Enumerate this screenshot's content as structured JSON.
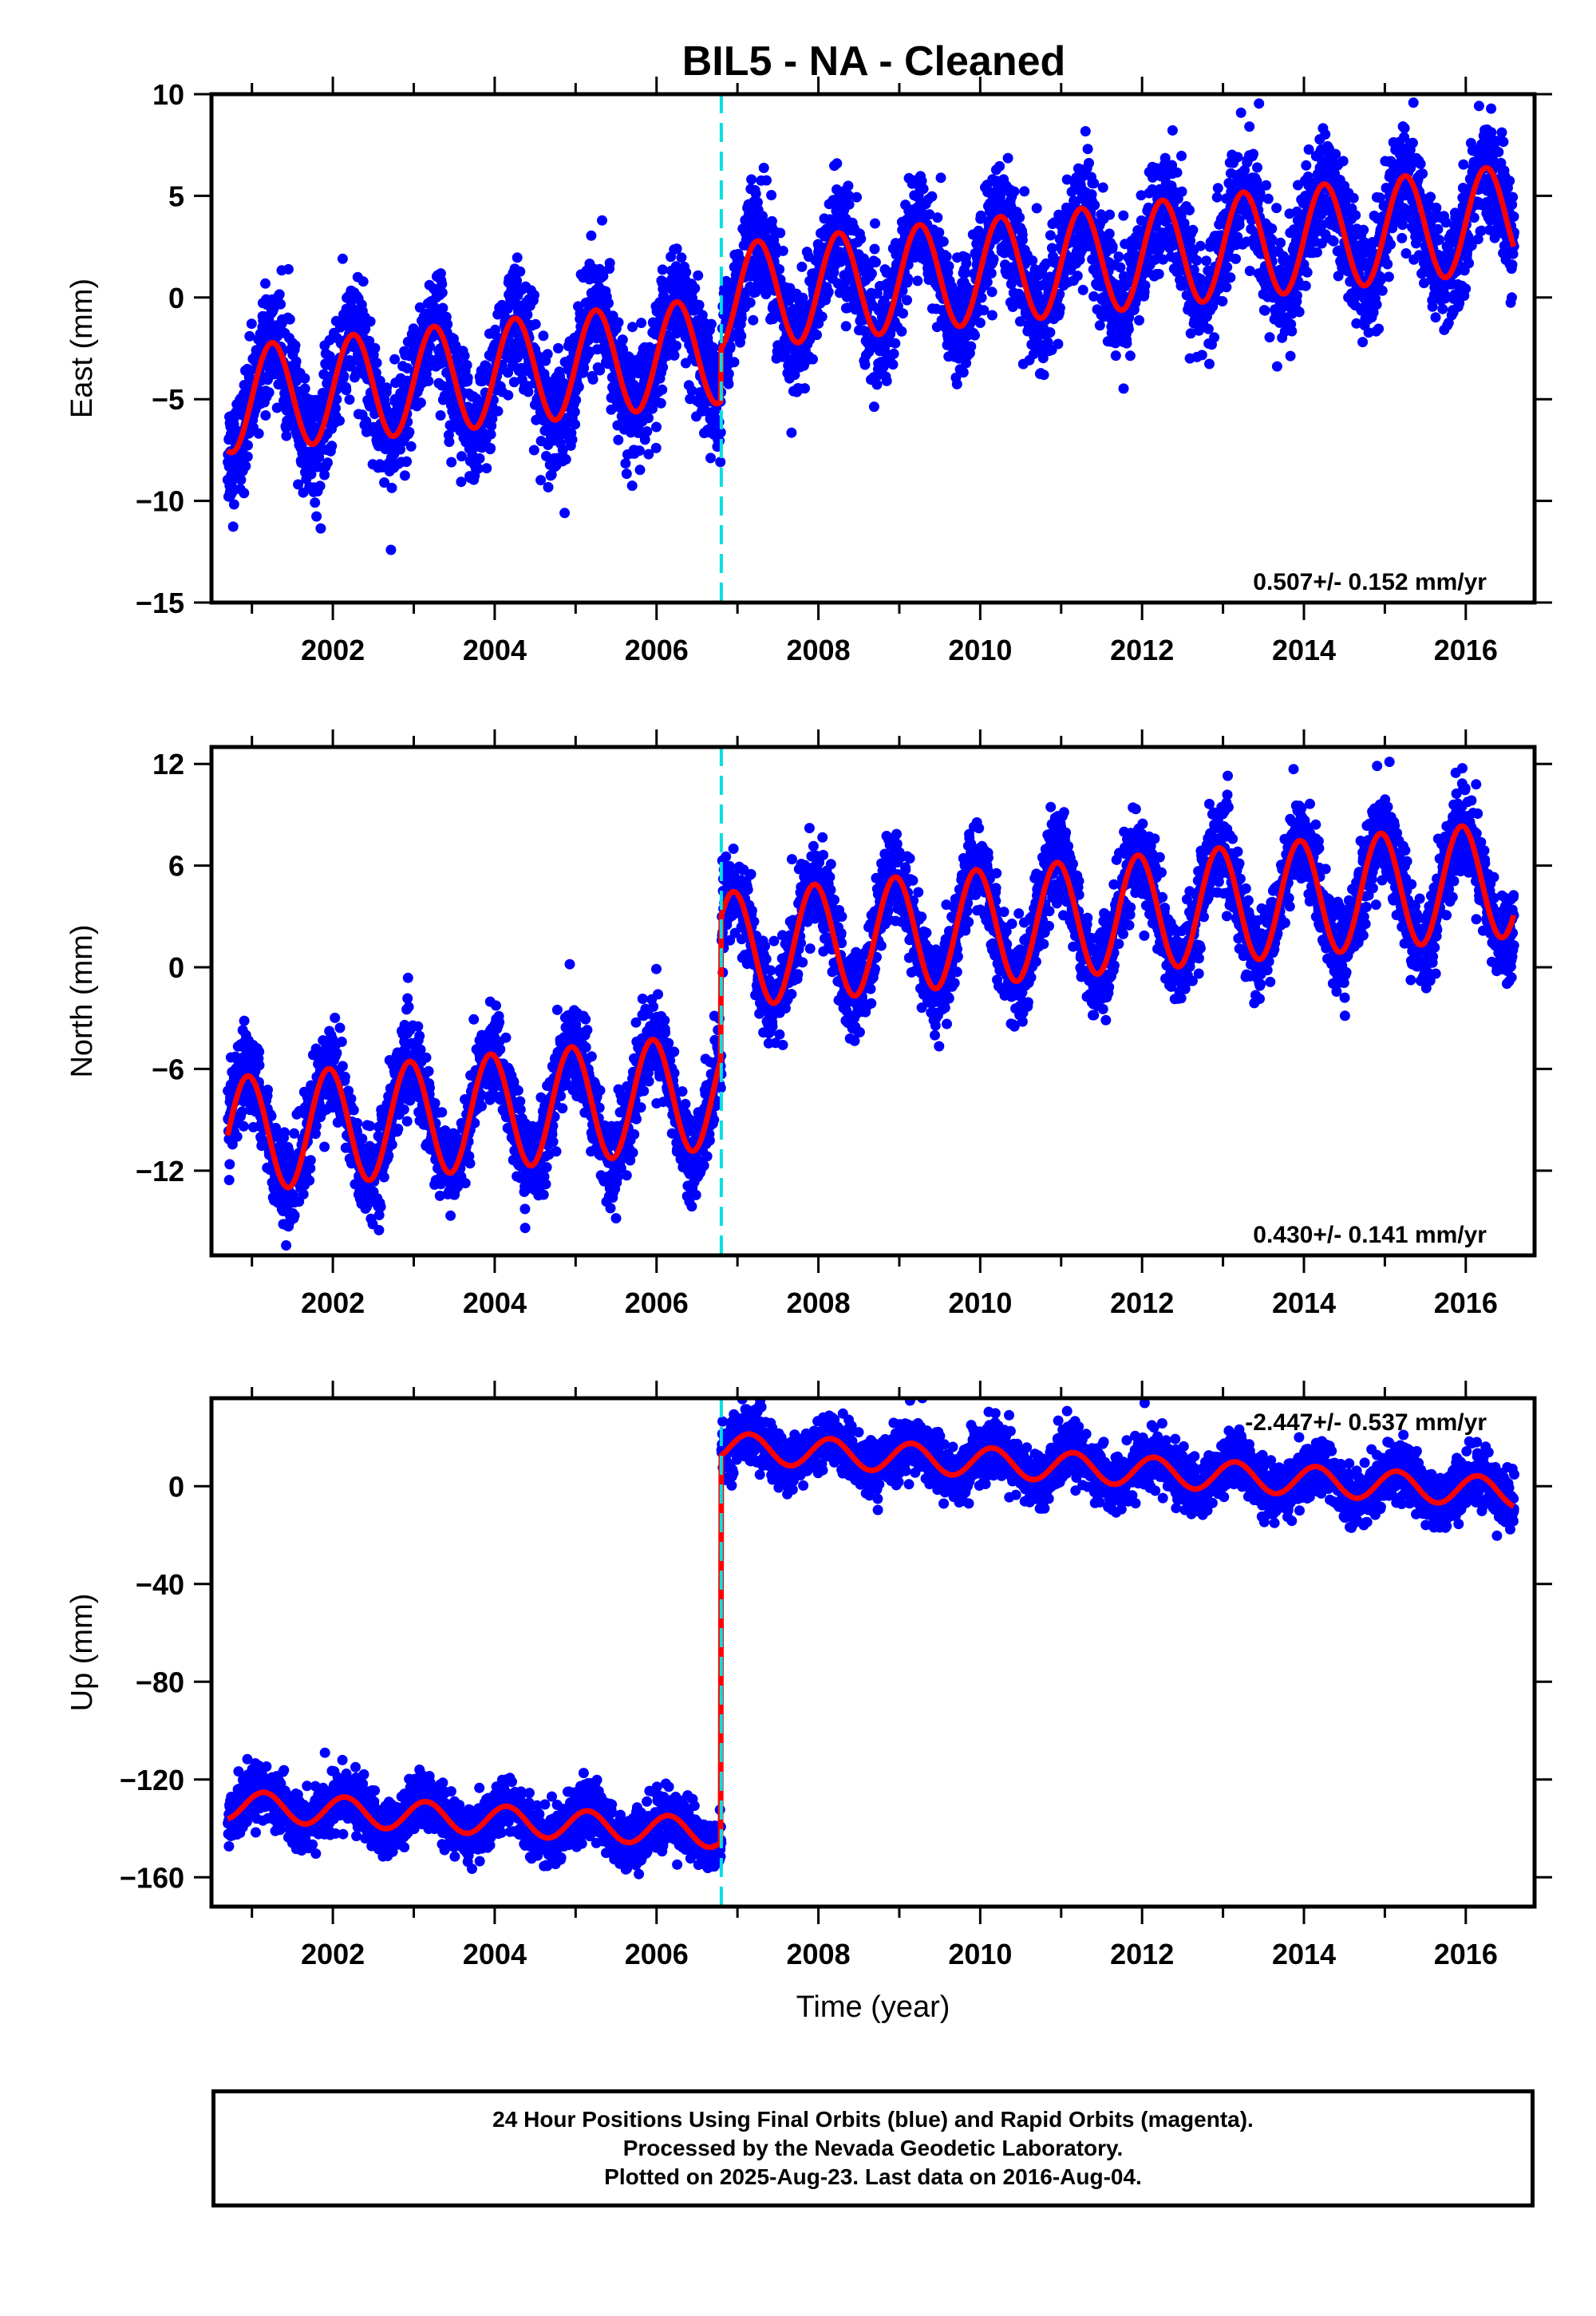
{
  "title": "BIL5  - NA - Cleaned",
  "colors": {
    "final_orbits": "#0000ff",
    "fit": "#ff0000",
    "offset_line": "#00e0e0",
    "frame": "#000000"
  },
  "chart_data": [
    {
      "type": "scatter",
      "ylabel": "East (mm)",
      "xlabel": "",
      "xlim": [
        2000.5,
        2016.85
      ],
      "ylim": [
        -15,
        10
      ],
      "yticks": [
        -15,
        -10,
        -5,
        0,
        5,
        10
      ],
      "xticks": [
        2002,
        2004,
        2006,
        2008,
        2010,
        2012,
        2014,
        2016
      ],
      "offset_epoch": 2006.8,
      "rate_label": "0.507+/- 0.152 mm/yr",
      "model": {
        "start": 2000.7,
        "end": 2016.6,
        "t0": 2006.8,
        "offset_before": -2.6,
        "offset_after": 0.0,
        "rate": 0.4,
        "annual_amp": 2.6,
        "annual_phase": 0.0,
        "noise": 1.4
      },
      "series": [
        {
          "name": "",
          "kind": "points"
        },
        {
          "name": "",
          "kind": "fit"
        }
      ]
    },
    {
      "type": "scatter",
      "ylabel": "North (mm)",
      "xlabel": "",
      "xlim": [
        2000.5,
        2016.85
      ],
      "ylim": [
        -17,
        13
      ],
      "yticks": [
        -12,
        -6,
        0,
        6,
        12
      ],
      "xticks": [
        2002,
        2004,
        2006,
        2008,
        2010,
        2012,
        2014,
        2016
      ],
      "offset_epoch": 2006.8,
      "rate_label": "0.430+/- 0.141 mm/yr",
      "model": {
        "start": 2000.7,
        "end": 2016.6,
        "t0": 2006.8,
        "offset_before": -7.3,
        "offset_after": 1.0,
        "rate": 0.43,
        "annual_amp": 3.4,
        "annual_phase": 0.3,
        "noise": 1.3
      },
      "series": [
        {
          "name": "",
          "kind": "points"
        },
        {
          "name": "",
          "kind": "fit"
        }
      ]
    },
    {
      "type": "scatter",
      "ylabel": "Up (mm)",
      "xlabel": "Time (year)",
      "xlim": [
        2000.5,
        2016.85
      ],
      "ylim": [
        -172,
        36
      ],
      "yticks": [
        -160,
        -120,
        -80,
        -40,
        0
      ],
      "xticks": [
        2002,
        2004,
        2006,
        2008,
        2010,
        2012,
        2014,
        2016
      ],
      "offset_epoch": 2006.8,
      "rate_label": "-2.447+/- 0.537 mm/yr",
      "model": {
        "start": 2000.7,
        "end": 2016.6,
        "t0": 2006.8,
        "offset_before": -142.0,
        "offset_after": 16.0,
        "rate": -1.9,
        "annual_amp": 6.0,
        "annual_phase": 0.1,
        "noise": 5.5
      },
      "series": [
        {
          "name": "",
          "kind": "points"
        },
        {
          "name": "",
          "kind": "fit"
        }
      ]
    }
  ],
  "footer": {
    "line1": "24 Hour Positions Using Final Orbits (blue) and Rapid Orbits (magenta).",
    "line2": "Processed by the Nevada Geodetic Laboratory.",
    "line3": "Plotted on 2025-Aug-23. Last data on 2016-Aug-04."
  }
}
